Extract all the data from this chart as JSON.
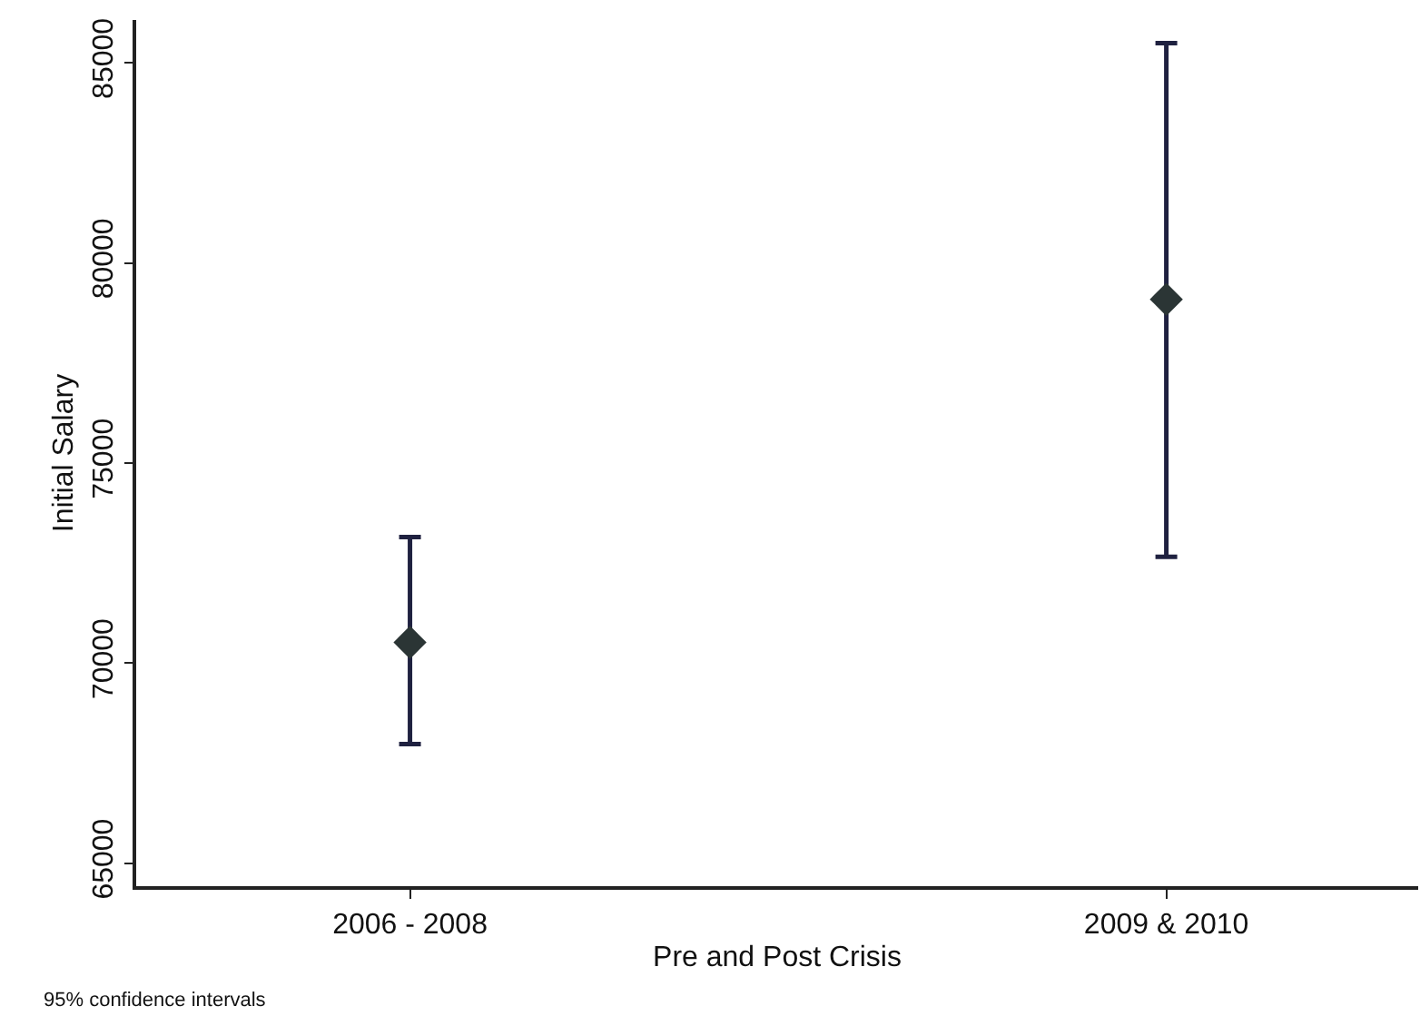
{
  "chart_data": {
    "type": "scatter",
    "xlabel": "Pre and Post Crisis",
    "ylabel": "Initial Salary",
    "categories": [
      "2006 - 2008",
      "2009 & 2010"
    ],
    "series": [
      {
        "color": "#2b3535",
        "values": [
          70520,
          79090
        ],
        "errors": [
          [
            67980,
            73150
          ],
          [
            72660,
            85490
          ]
        ]
      }
    ],
    "ylim": [
      64430,
      86070
    ],
    "yticks": [
      65000,
      70000,
      75000,
      80000,
      85000
    ],
    "marker": "diamond",
    "annotations": [
      "95% confidence intervals"
    ]
  }
}
